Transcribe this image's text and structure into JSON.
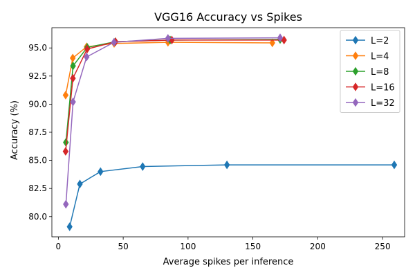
{
  "chart_data": {
    "type": "line",
    "title": "VGG16 Accuracy vs Spikes",
    "xlabel": "Average spikes per inference",
    "ylabel": "Accuracy (%)",
    "xlim": [
      -5,
      267
    ],
    "ylim": [
      78.2,
      96.8
    ],
    "xticks": [
      0,
      50,
      100,
      150,
      200,
      250
    ],
    "yticks": [
      80.0,
      82.5,
      85.0,
      87.5,
      90.0,
      92.5,
      95.0
    ],
    "xtick_labels": [
      "0",
      "50",
      "100",
      "150",
      "200",
      "250"
    ],
    "ytick_labels": [
      "80.0",
      "82.5",
      "85.0",
      "87.5",
      "90.0",
      "92.5",
      "95.0"
    ],
    "grid": false,
    "legend_position": "top-right",
    "marker": "thin-diamond",
    "series": [
      {
        "name": "L=2",
        "color": "#1f77b4",
        "points": [
          [
            8.7,
            79.1
          ],
          [
            16.6,
            82.9
          ],
          [
            32.5,
            84.0
          ],
          [
            65.0,
            84.45
          ],
          [
            130.0,
            84.6
          ],
          [
            259.0,
            84.6
          ]
        ]
      },
      {
        "name": "L=4",
        "color": "#ff7f0e",
        "points": [
          [
            5.6,
            90.8
          ],
          [
            11.1,
            94.1
          ],
          [
            21.8,
            95.1
          ],
          [
            43.0,
            95.4
          ],
          [
            84.5,
            95.5
          ],
          [
            165.0,
            95.45
          ]
        ]
      },
      {
        "name": "L=8",
        "color": "#2ca02c",
        "points": [
          [
            5.8,
            86.6
          ],
          [
            11.3,
            93.4
          ],
          [
            22.3,
            95.05
          ],
          [
            43.9,
            95.55
          ],
          [
            86.2,
            95.7
          ],
          [
            171.0,
            95.75
          ]
        ]
      },
      {
        "name": "L=16",
        "color": "#d62728",
        "points": [
          [
            5.6,
            85.8
          ],
          [
            11.2,
            92.3
          ],
          [
            22.2,
            94.9
          ],
          [
            44.1,
            95.55
          ],
          [
            87.5,
            95.7
          ],
          [
            174.0,
            95.7
          ]
        ]
      },
      {
        "name": "L=32",
        "color": "#9467bd",
        "points": [
          [
            5.8,
            81.1
          ],
          [
            11.3,
            90.2
          ],
          [
            21.8,
            94.2
          ],
          [
            42.9,
            95.5
          ],
          [
            84.5,
            95.85
          ],
          [
            171.0,
            95.9
          ]
        ]
      }
    ]
  }
}
